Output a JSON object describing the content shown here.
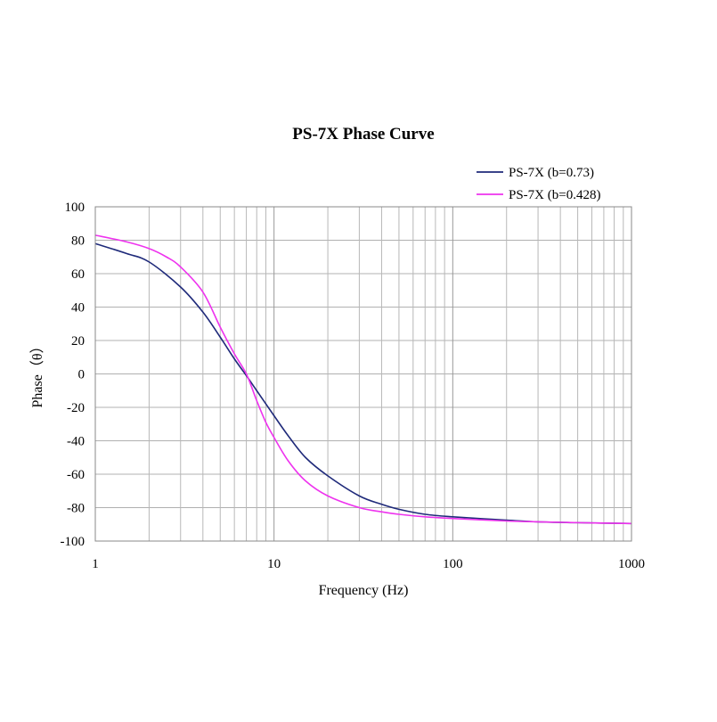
{
  "chart_data": {
    "type": "line",
    "title": "PS-7X Phase Curve",
    "xlabel": "Frequency (Hz)",
    "ylabel": "Phase（θ）",
    "x_scale": "log",
    "xlim": [
      1,
      1000
    ],
    "ylim": [
      -100,
      100
    ],
    "x_ticks": [
      1,
      10,
      100,
      1000
    ],
    "x_tick_labels": [
      "1",
      "10",
      "100",
      "1000"
    ],
    "y_ticks": [
      100,
      80,
      60,
      40,
      20,
      0,
      -20,
      -40,
      -60,
      -80,
      -100
    ],
    "y_tick_labels": [
      "100",
      "80",
      "60",
      "40",
      "20",
      "0",
      "-20",
      "-40",
      "-60",
      "-80",
      "-100"
    ],
    "grid": true,
    "legend_position": "top-right",
    "series": [
      {
        "name": "PS-7X (b=0.73)",
        "color": "#1f2a7a",
        "x": [
          1,
          1.5,
          2,
          3,
          4,
          5,
          6,
          7,
          8,
          10,
          12,
          15,
          20,
          30,
          40,
          50,
          70,
          100,
          200,
          300,
          500,
          1000
        ],
        "y": [
          78,
          72,
          67,
          52,
          37,
          22,
          9,
          -1,
          -10,
          -25,
          -37,
          -50,
          -61,
          -73,
          -78,
          -81,
          -84,
          -85.5,
          -87.5,
          -88.5,
          -89,
          -89.5
        ]
      },
      {
        "name": "PS-7X (b=0.428)",
        "color": "#ee33ee",
        "x": [
          1,
          1.5,
          2,
          2.5,
          3,
          4,
          5,
          6,
          7,
          8,
          9,
          10,
          12,
          15,
          20,
          30,
          40,
          50,
          70,
          100,
          200,
          300,
          500,
          1000
        ],
        "y": [
          83,
          79,
          75,
          70,
          64,
          49,
          28,
          12,
          0,
          -16,
          -29,
          -38,
          -52,
          -64,
          -73,
          -80,
          -82.5,
          -84,
          -85.5,
          -86.5,
          -88,
          -88.5,
          -89,
          -89.5
        ]
      }
    ]
  }
}
